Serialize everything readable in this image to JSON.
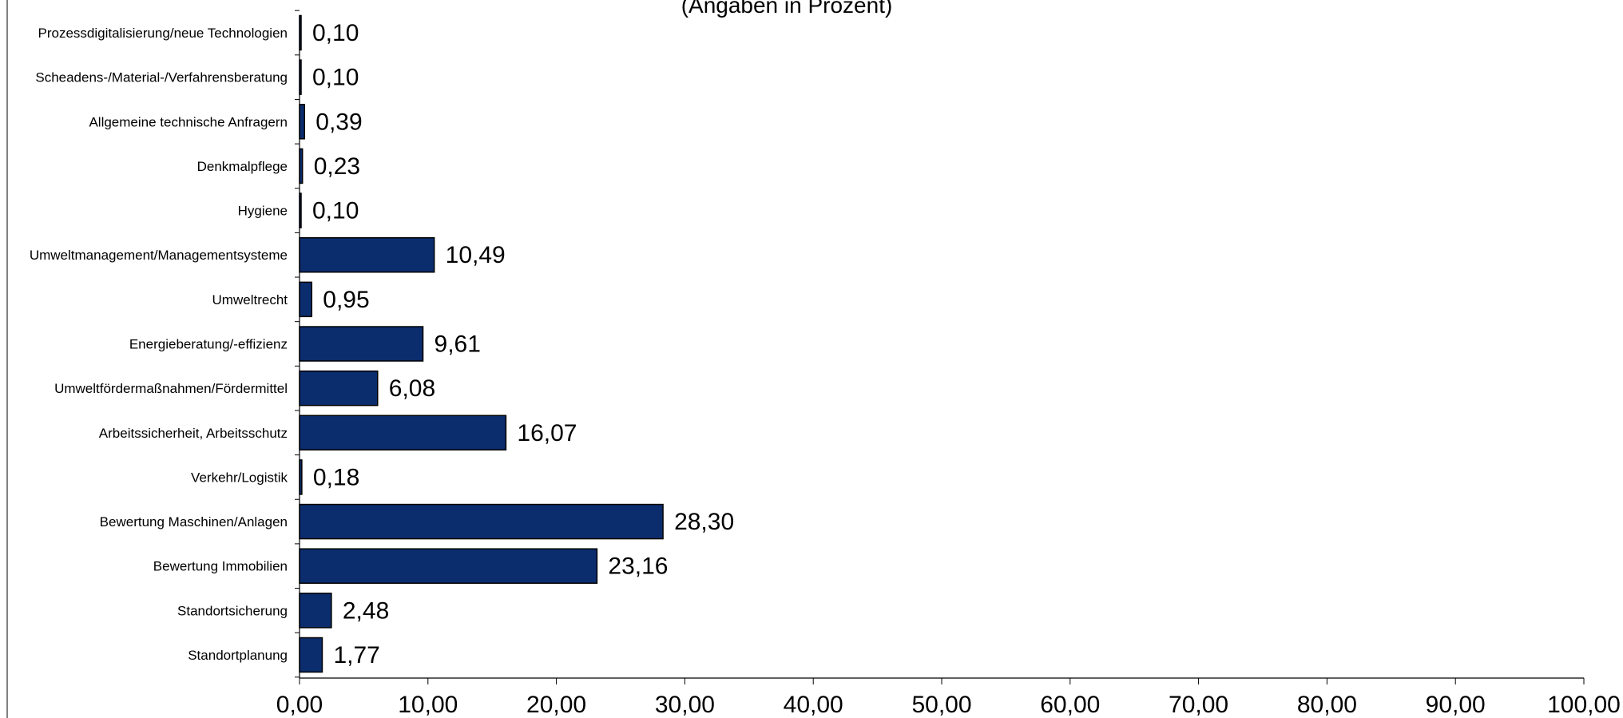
{
  "chart_data": {
    "type": "bar",
    "orientation": "horizontal",
    "subtitle": "(Angaben in Prozent)",
    "categories": [
      "Prozessdigitalisierung/neue Technologien",
      "Scheadens-/Material-/Verfahrensberatung",
      "Allgemeine technische Anfragern",
      "Denkmalpflege",
      "Hygiene",
      "Umweltmanagement/Managementsysteme",
      "Umweltrecht",
      "Energieberatung/-effizienz",
      "Umweltfördermaßnahmen/Fördermittel",
      "Arbeitssicherheit, Arbeitsschutz",
      "Verkehr/Logistik",
      "Bewertung Maschinen/Anlagen",
      "Bewertung Immobilien",
      "Standortsicherung",
      "Standortplanung"
    ],
    "values": [
      0.1,
      0.1,
      0.39,
      0.23,
      0.1,
      10.49,
      0.95,
      9.61,
      6.08,
      16.07,
      0.18,
      28.3,
      23.16,
      2.48,
      1.77
    ],
    "value_labels": [
      "0,10",
      "0,10",
      "0,39",
      "0,23",
      "0,10",
      "10,49",
      "0,95",
      "9,61",
      "6,08",
      "16,07",
      "0,18",
      "28,30",
      "23,16",
      "2,48",
      "1,77"
    ],
    "xlim": [
      0,
      100
    ],
    "x_ticks": [
      0,
      10,
      20,
      30,
      40,
      50,
      60,
      70,
      80,
      90,
      100
    ],
    "x_tick_labels": [
      "0,00",
      "10,00",
      "20,00",
      "30,00",
      "40,00",
      "50,00",
      "60,00",
      "70,00",
      "80,00",
      "90,00",
      "100,00"
    ],
    "grid": false,
    "legend": "none",
    "bar_color": "#0B2D6E",
    "bar_edge_color": "#000000",
    "axis_color": "#000000"
  }
}
